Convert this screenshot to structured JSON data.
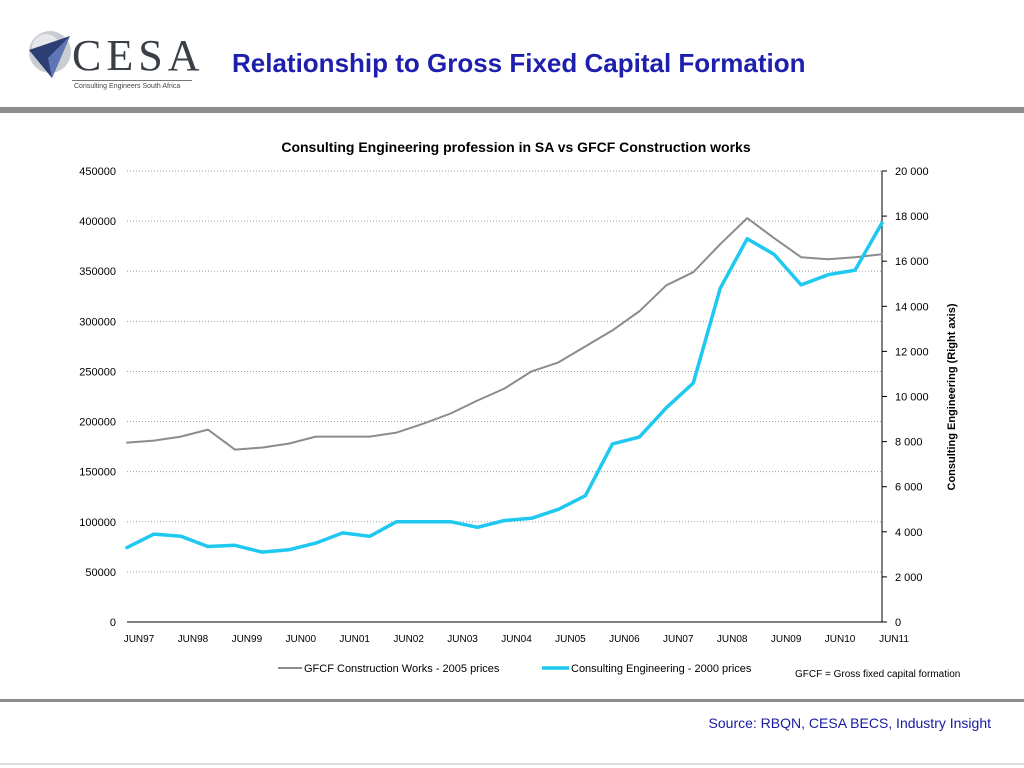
{
  "header": {
    "logo_text": "CESA",
    "logo_tagline": "Consulting Engineers South Africa",
    "title": "Relationship to Gross Fixed Capital Formation"
  },
  "footer": {
    "source": "Source: RBQN, CESA BECS, Industry Insight"
  },
  "colors": {
    "title": "#1f1fae",
    "gfcf_series": "#8c8c8c",
    "consulting_series": "#1ec8f0",
    "rules": "#8c8c8c"
  },
  "chart_data": {
    "type": "line",
    "title": "Consulting Engineering profession in SA  vs  GFCF Construction works",
    "xlabel": "",
    "ylabel_left": "",
    "ylabel_right": "Consulting Engineering (Right axis)",
    "x_tick_labels": [
      "JUN97",
      "JUN98",
      "JUN99",
      "JUN00",
      "JUN01",
      "JUN02",
      "JUN03",
      "JUN04",
      "JUN05",
      "JUN06",
      "JUN07",
      "JUN08",
      "JUN09",
      "JUN10",
      "JUN11"
    ],
    "x_range": [
      0,
      14
    ],
    "y_left_range": [
      0,
      450000
    ],
    "y_left_ticks": [
      "0",
      "50000",
      "100000",
      "150000",
      "200000",
      "250000",
      "300000",
      "350000",
      "400000",
      "450000"
    ],
    "y_right_range": [
      0,
      20000
    ],
    "y_right_ticks": [
      "0",
      "2 000",
      "4 000",
      "6 000",
      "8 000",
      "10 000",
      "12 000",
      "14 000",
      "16 000",
      "18 000",
      "20 000"
    ],
    "grid": true,
    "legend_position": "bottom",
    "annotation": "GFCF = Gross fixed capital formation",
    "series": [
      {
        "name": "GFCF Construction Works - 2005 prices",
        "axis": "left",
        "x": [
          0,
          0.5,
          1,
          1.5,
          2,
          2.5,
          3,
          3.5,
          4,
          4.5,
          5,
          5.5,
          6,
          6.5,
          7,
          7.5,
          8,
          8.5,
          9,
          9.5,
          10,
          10.5,
          11,
          11.5,
          12,
          12.5,
          13,
          13.5,
          14
        ],
        "values": [
          179000,
          181000,
          185000,
          192000,
          172000,
          174000,
          178000,
          185000,
          185000,
          185000,
          189000,
          198000,
          208000,
          221000,
          233000,
          250000,
          259000,
          275000,
          291000,
          310000,
          336000,
          349000,
          377000,
          403000,
          383000,
          364000,
          362000,
          364000,
          367000
        ]
      },
      {
        "name": "Consulting Engineering - 2000 prices",
        "axis": "right",
        "x": [
          0,
          0.5,
          1,
          1.5,
          2,
          2.5,
          3,
          3.5,
          4,
          4.5,
          5,
          5.5,
          6,
          6.5,
          7,
          7.5,
          8,
          8.5,
          9,
          9.5,
          10,
          10.5,
          11,
          11.5,
          12,
          12.5,
          13,
          13.5,
          14
        ],
        "values": [
          3300,
          3900,
          3800,
          3350,
          3400,
          3100,
          3200,
          3500,
          3950,
          3800,
          4450,
          4450,
          4450,
          4200,
          4500,
          4600,
          5000,
          5600,
          7900,
          8200,
          9500,
          10600,
          14800,
          17000,
          16300,
          14950,
          15400,
          15600,
          17700
        ]
      }
    ]
  }
}
